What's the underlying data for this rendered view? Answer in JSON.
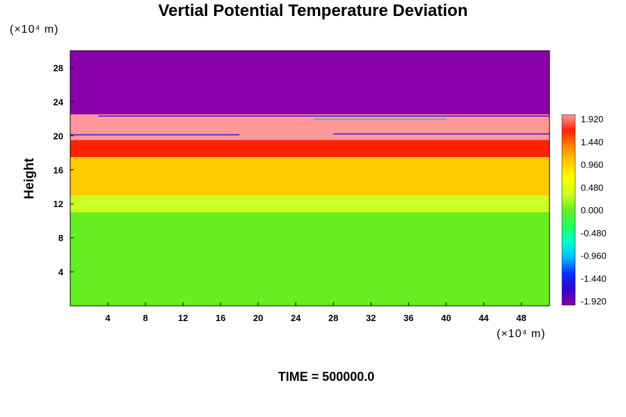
{
  "chart_data": {
    "type": "heatmap",
    "title": "Vertial Potential Temperature Deviation",
    "ylabel": "Height",
    "x_unit": "(×10⁴ m)",
    "y_unit": "(×10⁴ m)",
    "footer": "TIME = 500000.0",
    "x_ticks": [
      4,
      8,
      12,
      16,
      20,
      24,
      28,
      32,
      36,
      40,
      44,
      48
    ],
    "y_ticks": [
      4,
      8,
      12,
      16,
      20,
      24,
      28
    ],
    "xlim": [
      0,
      51
    ],
    "ylim": [
      0,
      30
    ],
    "colorbar": {
      "ticks": [
        "1.920",
        "1.440",
        "0.960",
        "0.480",
        "0.000",
        "-0.480",
        "-0.960",
        "-1.440",
        "-1.920"
      ],
      "range": [
        -1.92,
        1.92
      ]
    },
    "color_scale": [
      "#8800aa",
      "#3300cc",
      "#0033ff",
      "#00bbff",
      "#00ffcc",
      "#22ff55",
      "#66ee22",
      "#ccff22",
      "#ffff00",
      "#ffcc00",
      "#ff8800",
      "#ff2200",
      "#ff9999"
    ],
    "vertical_profile": [
      {
        "y_range": [
          0,
          11
        ],
        "value": 0.05
      },
      {
        "y_range": [
          11,
          13
        ],
        "value": 0.25
      },
      {
        "y_range": [
          13,
          17.5
        ],
        "value": 0.85
      },
      {
        "y_range": [
          17.5,
          19.5
        ],
        "value": 1.6
      },
      {
        "y_range": [
          19.5,
          22.5
        ],
        "value": 1.92
      },
      {
        "y_range": [
          22.5,
          30
        ],
        "value": -1.92
      }
    ]
  }
}
